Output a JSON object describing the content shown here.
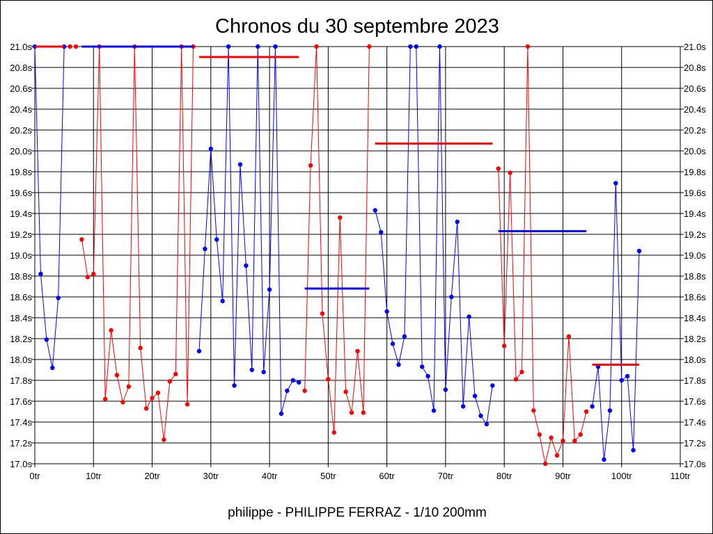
{
  "chart_data": {
    "type": "line",
    "title": "Chronos du 30 septembre 2023",
    "subtitle": "philippe - PHILIPPE FERRAZ - 1/10 200mm",
    "xlim": [
      0,
      110
    ],
    "ylim": [
      17.0,
      21.0
    ],
    "x_ticks": [
      0,
      10,
      20,
      30,
      40,
      50,
      60,
      70,
      80,
      90,
      100,
      110
    ],
    "x_tick_labels": [
      "0tr",
      "10tr",
      "20tr",
      "30tr",
      "40tr",
      "50tr",
      "60tr",
      "70tr",
      "80tr",
      "90tr",
      "100tr",
      "110tr"
    ],
    "y_ticks": [
      17.0,
      17.2,
      17.4,
      17.6,
      17.8,
      18.0,
      18.2,
      18.4,
      18.6,
      18.8,
      19.0,
      19.2,
      19.4,
      19.6,
      19.8,
      20.0,
      20.2,
      20.4,
      20.6,
      20.8,
      21.0
    ],
    "y_tick_labels": [
      "17.0s",
      "17.2s",
      "17.4s",
      "17.6s",
      "17.8s",
      "18.0s",
      "18.2s",
      "18.4s",
      "18.6s",
      "18.8s",
      "19.0s",
      "19.2s",
      "19.4s",
      "19.6s",
      "19.8s",
      "20.0s",
      "20.2s",
      "20.4s",
      "20.6s",
      "20.8s",
      "21.0s"
    ],
    "grid": true,
    "colors": {
      "red": "#ff0000",
      "blue": "#0000ff"
    },
    "series": [
      {
        "color": "#0000ff",
        "points": [
          [
            0,
            21.0
          ],
          [
            1,
            18.82
          ],
          [
            2,
            18.19
          ],
          [
            3,
            17.92
          ],
          [
            4,
            18.59
          ],
          [
            5,
            21.0
          ]
        ]
      },
      {
        "color": "#ff0000",
        "points": [
          [
            6,
            21.0
          ],
          [
            7,
            21.0
          ]
        ]
      },
      {
        "color": "#ff0000",
        "points": [
          [
            8,
            19.15
          ],
          [
            9,
            18.79
          ],
          [
            10,
            18.82
          ],
          [
            11,
            21.0
          ],
          [
            12,
            17.62
          ],
          [
            13,
            18.28
          ],
          [
            14,
            17.85
          ],
          [
            15,
            17.59
          ],
          [
            16,
            17.74
          ],
          [
            17,
            21.0
          ],
          [
            18,
            18.11
          ],
          [
            19,
            17.53
          ],
          [
            20,
            17.63
          ],
          [
            21,
            17.68
          ],
          [
            22,
            17.23
          ],
          [
            23,
            17.79
          ],
          [
            24,
            17.86
          ],
          [
            25,
            21.0
          ],
          [
            26,
            17.57
          ],
          [
            27,
            21.0
          ]
        ]
      },
      {
        "color": "#0000ff",
        "points": [
          [
            28,
            18.08
          ],
          [
            29,
            19.06
          ],
          [
            30,
            20.02
          ],
          [
            31,
            19.15
          ],
          [
            32,
            18.56
          ],
          [
            33,
            21.0
          ],
          [
            34,
            17.75
          ],
          [
            35,
            19.87
          ],
          [
            36,
            18.9
          ],
          [
            37,
            17.9
          ],
          [
            38,
            21.0
          ],
          [
            39,
            17.88
          ],
          [
            40,
            18.67
          ],
          [
            41,
            21.0
          ],
          [
            42,
            17.48
          ],
          [
            43,
            17.7
          ],
          [
            44,
            17.8
          ],
          [
            45,
            17.78
          ]
        ]
      },
      {
        "color": "#ff0000",
        "points": [
          [
            46,
            17.7
          ],
          [
            47,
            19.86
          ],
          [
            48,
            21.0
          ],
          [
            49,
            18.44
          ],
          [
            50,
            17.81
          ],
          [
            51,
            17.3
          ],
          [
            52,
            19.36
          ],
          [
            53,
            17.69
          ],
          [
            54,
            17.49
          ],
          [
            55,
            18.08
          ],
          [
            56,
            17.49
          ],
          [
            57,
            21.0
          ]
        ]
      },
      {
        "color": "#0000ff",
        "points": [
          [
            58,
            19.43
          ],
          [
            59,
            19.22
          ],
          [
            60,
            18.46
          ],
          [
            61,
            18.15
          ],
          [
            62,
            17.95
          ],
          [
            63,
            18.22
          ],
          [
            64,
            21.0
          ],
          [
            65,
            21.0
          ],
          [
            66,
            17.93
          ],
          [
            67,
            17.84
          ],
          [
            68,
            17.51
          ],
          [
            69,
            21.0
          ],
          [
            70,
            17.71
          ],
          [
            71,
            18.6
          ],
          [
            72,
            19.32
          ],
          [
            73,
            17.55
          ],
          [
            74,
            18.41
          ],
          [
            75,
            17.65
          ],
          [
            76,
            17.46
          ],
          [
            77,
            17.38
          ],
          [
            78,
            17.75
          ]
        ]
      },
      {
        "color": "#ff0000",
        "points": [
          [
            79,
            19.83
          ],
          [
            80,
            18.13
          ],
          [
            81,
            19.79
          ],
          [
            82,
            17.81
          ],
          [
            83,
            17.88
          ],
          [
            84,
            21.0
          ],
          [
            85,
            17.51
          ],
          [
            86,
            17.28
          ],
          [
            87,
            17.0
          ],
          [
            88,
            17.25
          ],
          [
            89,
            17.08
          ],
          [
            90,
            17.22
          ],
          [
            91,
            18.22
          ],
          [
            92,
            17.22
          ],
          [
            93,
            17.28
          ],
          [
            94,
            17.5
          ]
        ]
      },
      {
        "color": "#0000ff",
        "points": [
          [
            95,
            17.55
          ],
          [
            96,
            17.93
          ],
          [
            97,
            17.04
          ],
          [
            98,
            17.51
          ],
          [
            99,
            19.69
          ],
          [
            100,
            17.8
          ],
          [
            101,
            17.84
          ],
          [
            102,
            17.13
          ],
          [
            103,
            19.04
          ]
        ]
      }
    ],
    "mean_lines": [
      {
        "color": "#ff0000",
        "x": [
          0,
          5
        ],
        "y": 21.0
      },
      {
        "color": "#0000ff",
        "x": [
          8,
          27
        ],
        "y": 21.0
      },
      {
        "color": "#ff0000",
        "x": [
          28,
          45
        ],
        "y": 20.9
      },
      {
        "color": "#0000ff",
        "x": [
          46,
          57
        ],
        "y": 18.68
      },
      {
        "color": "#ff0000",
        "x": [
          58,
          78
        ],
        "y": 20.07
      },
      {
        "color": "#0000ff",
        "x": [
          79,
          94
        ],
        "y": 19.23
      },
      {
        "color": "#ff0000",
        "x": [
          95,
          103
        ],
        "y": 17.95
      }
    ]
  }
}
